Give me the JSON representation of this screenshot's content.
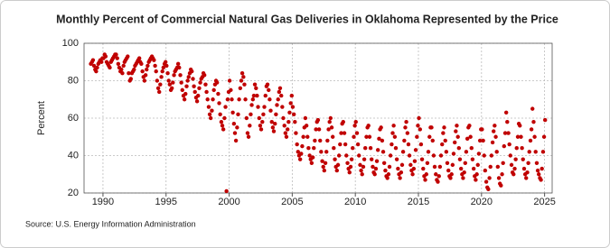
{
  "chart_data": {
    "type": "scatter",
    "title": "Monthly Percent of Commercial Natural Gas Deliveries in Oklahoma Represented by the Price",
    "y_label": "Percent",
    "source": "Source: U.S. Energy Information Administration",
    "xlim": [
      1988.5,
      2025.6
    ],
    "xticks": [
      1990,
      1995,
      2000,
      2005,
      2010,
      2015,
      2020,
      2025
    ],
    "ylim": [
      20,
      100
    ],
    "yticks": [
      20,
      40,
      60,
      80,
      100
    ],
    "grid": true,
    "series": [
      {
        "color": "#c00000",
        "x": [
          1989.04,
          1989.13,
          1989.21,
          1989.29,
          1989.38,
          1989.46,
          1989.54,
          1989.63,
          1989.71,
          1989.79,
          1989.88,
          1989.96,
          1990.04,
          1990.13,
          1990.21,
          1990.29,
          1990.38,
          1990.46,
          1990.54,
          1990.63,
          1990.71,
          1990.79,
          1990.88,
          1990.96,
          1991.04,
          1991.13,
          1991.21,
          1991.29,
          1991.38,
          1991.46,
          1991.54,
          1991.63,
          1991.71,
          1991.79,
          1991.88,
          1991.96,
          1992.04,
          1992.13,
          1992.21,
          1992.29,
          1992.38,
          1992.46,
          1992.54,
          1992.63,
          1992.71,
          1992.79,
          1992.88,
          1992.96,
          1993.04,
          1993.13,
          1993.21,
          1993.29,
          1993.38,
          1993.46,
          1993.54,
          1993.63,
          1993.71,
          1993.79,
          1993.88,
          1993.96,
          1994.04,
          1994.13,
          1994.21,
          1994.29,
          1994.38,
          1994.46,
          1994.54,
          1994.63,
          1994.71,
          1994.79,
          1994.88,
          1994.96,
          1995.04,
          1995.13,
          1995.21,
          1995.29,
          1995.38,
          1995.46,
          1995.54,
          1995.63,
          1995.71,
          1995.79,
          1995.88,
          1995.96,
          1996.04,
          1996.13,
          1996.21,
          1996.29,
          1996.38,
          1996.46,
          1996.54,
          1996.63,
          1996.71,
          1996.79,
          1996.88,
          1996.96,
          1997.04,
          1997.13,
          1997.21,
          1997.29,
          1997.38,
          1997.46,
          1997.54,
          1997.63,
          1997.71,
          1997.79,
          1997.88,
          1997.96,
          1998.04,
          1998.13,
          1998.21,
          1998.29,
          1998.38,
          1998.46,
          1998.54,
          1998.63,
          1998.71,
          1998.79,
          1998.88,
          1998.96,
          1999.04,
          1999.13,
          1999.21,
          1999.29,
          1999.38,
          1999.46,
          1999.54,
          1999.63,
          1999.71,
          1999.79,
          1999.88,
          1999.96,
          2000.04,
          2000.13,
          2000.21,
          2000.29,
          2000.38,
          2000.46,
          2000.54,
          2000.63,
          2000.71,
          2000.79,
          2000.88,
          2000.96,
          2001.04,
          2001.13,
          2001.21,
          2001.29,
          2001.38,
          2001.46,
          2001.54,
          2001.63,
          2001.71,
          2001.79,
          2001.88,
          2001.96,
          2002.04,
          2002.13,
          2002.21,
          2002.29,
          2002.38,
          2002.46,
          2002.54,
          2002.63,
          2002.71,
          2002.79,
          2002.88,
          2002.96,
          2003.04,
          2003.13,
          2003.21,
          2003.29,
          2003.38,
          2003.46,
          2003.54,
          2003.63,
          2003.71,
          2003.79,
          2003.88,
          2003.96,
          2004.04,
          2004.13,
          2004.21,
          2004.29,
          2004.38,
          2004.46,
          2004.54,
          2004.63,
          2004.71,
          2004.79,
          2004.88,
          2004.96,
          2005.04,
          2005.13,
          2005.21,
          2005.29,
          2005.38,
          2005.46,
          2005.54,
          2005.63,
          2005.71,
          2005.79,
          2005.88,
          2005.96,
          2006.04,
          2006.13,
          2006.21,
          2006.29,
          2006.38,
          2006.46,
          2006.54,
          2006.63,
          2006.71,
          2006.79,
          2006.88,
          2006.96,
          2007.04,
          2007.13,
          2007.21,
          2007.29,
          2007.38,
          2007.46,
          2007.54,
          2007.63,
          2007.71,
          2007.79,
          2007.88,
          2007.96,
          2008.04,
          2008.13,
          2008.21,
          2008.29,
          2008.38,
          2008.46,
          2008.54,
          2008.63,
          2008.71,
          2008.79,
          2008.88,
          2008.96,
          2009.04,
          2009.13,
          2009.21,
          2009.29,
          2009.38,
          2009.46,
          2009.54,
          2009.63,
          2009.71,
          2009.79,
          2009.88,
          2009.96,
          2010.04,
          2010.13,
          2010.21,
          2010.29,
          2010.38,
          2010.46,
          2010.54,
          2010.63,
          2010.71,
          2010.79,
          2010.88,
          2010.96,
          2011.04,
          2011.13,
          2011.21,
          2011.29,
          2011.38,
          2011.46,
          2011.54,
          2011.63,
          2011.71,
          2011.79,
          2011.88,
          2011.96,
          2012.04,
          2012.13,
          2012.21,
          2012.29,
          2012.38,
          2012.46,
          2012.54,
          2012.63,
          2012.71,
          2012.79,
          2012.88,
          2012.96,
          2013.04,
          2013.13,
          2013.21,
          2013.29,
          2013.38,
          2013.46,
          2013.54,
          2013.63,
          2013.71,
          2013.79,
          2013.88,
          2013.96,
          2014.04,
          2014.13,
          2014.21,
          2014.29,
          2014.38,
          2014.46,
          2014.54,
          2014.63,
          2014.71,
          2014.79,
          2014.88,
          2014.96,
          2015.04,
          2015.13,
          2015.21,
          2015.29,
          2015.38,
          2015.46,
          2015.54,
          2015.63,
          2015.71,
          2015.79,
          2015.88,
          2015.96,
          2016.04,
          2016.13,
          2016.21,
          2016.29,
          2016.38,
          2016.46,
          2016.54,
          2016.63,
          2016.71,
          2016.79,
          2016.88,
          2016.96,
          2017.04,
          2017.13,
          2017.21,
          2017.29,
          2017.38,
          2017.46,
          2017.54,
          2017.63,
          2017.71,
          2017.79,
          2017.88,
          2017.96,
          2018.04,
          2018.13,
          2018.21,
          2018.29,
          2018.38,
          2018.46,
          2018.54,
          2018.63,
          2018.71,
          2018.79,
          2018.88,
          2018.96,
          2019.04,
          2019.13,
          2019.21,
          2019.29,
          2019.38,
          2019.46,
          2019.54,
          2019.63,
          2019.71,
          2019.79,
          2019.88,
          2019.96,
          2020.04,
          2020.13,
          2020.21,
          2020.29,
          2020.38,
          2020.46,
          2020.54,
          2020.63,
          2020.71,
          2020.79,
          2020.88,
          2020.96,
          2021.04,
          2021.13,
          2021.21,
          2021.29,
          2021.38,
          2021.46,
          2021.54,
          2021.63,
          2021.71,
          2021.79,
          2021.88,
          2021.96,
          2022.04,
          2022.13,
          2022.21,
          2022.29,
          2022.38,
          2022.46,
          2022.54,
          2022.63,
          2022.71,
          2022.79,
          2022.88,
          2022.96,
          2023.04,
          2023.13,
          2023.21,
          2023.29,
          2023.38,
          2023.46,
          2023.54,
          2023.63,
          2023.71,
          2023.79,
          2023.88,
          2023.96,
          2024.04,
          2024.13,
          2024.21,
          2024.29,
          2024.38,
          2024.46,
          2024.54,
          2024.63,
          2024.71,
          2024.79,
          2024.88,
          2024.96,
          2025.04
        ],
        "values": [
          89,
          90,
          91,
          88,
          86,
          85,
          87,
          89,
          90,
          91,
          90,
          92,
          92,
          94,
          93,
          90,
          89,
          88,
          87,
          90,
          91,
          92,
          93,
          94,
          94,
          92,
          89,
          87,
          85,
          86,
          84,
          88,
          90,
          91,
          92,
          93,
          84,
          80,
          81,
          84,
          85,
          86,
          88,
          89,
          90,
          91,
          92,
          90,
          89,
          85,
          82,
          80,
          83,
          86,
          88,
          90,
          91,
          92,
          93,
          92,
          91,
          88,
          85,
          80,
          76,
          74,
          78,
          82,
          85,
          87,
          89,
          90,
          88,
          84,
          80,
          78,
          75,
          76,
          79,
          83,
          85,
          86,
          87,
          89,
          87,
          83,
          79,
          75,
          72,
          70,
          73,
          77,
          80,
          82,
          84,
          86,
          85,
          81,
          77,
          74,
          71,
          69,
          72,
          76,
          79,
          81,
          82,
          84,
          83,
          78,
          74,
          70,
          66,
          62,
          60,
          64,
          70,
          75,
          78,
          80,
          79,
          73,
          68,
          62,
          58,
          56,
          54,
          60,
          66,
          21,
          70,
          74,
          80,
          75,
          70,
          63,
          57,
          52,
          48,
          55,
          62,
          70,
          76,
          80,
          84,
          82,
          78,
          70,
          60,
          52,
          50,
          56,
          62,
          67,
          70,
          72,
          78,
          76,
          72,
          66,
          60,
          56,
          54,
          58,
          62,
          66,
          72,
          77,
          78,
          75,
          70,
          64,
          58,
          55,
          53,
          57,
          62,
          67,
          70,
          74,
          76,
          72,
          66,
          60,
          56,
          52,
          50,
          54,
          58,
          63,
          68,
          72,
          66,
          62,
          58,
          52,
          46,
          42,
          40,
          38,
          41,
          45,
          50,
          55,
          60,
          56,
          50,
          44,
          40,
          38,
          36,
          39,
          44,
          48,
          54,
          58,
          59,
          54,
          48,
          42,
          37,
          34,
          32,
          36,
          42,
          48,
          54,
          58,
          60,
          55,
          50,
          44,
          38,
          34,
          32,
          35,
          40,
          46,
          52,
          57,
          58,
          52,
          46,
          40,
          36,
          33,
          31,
          34,
          38,
          44,
          50,
          56,
          58,
          52,
          46,
          40,
          35,
          32,
          30,
          34,
          38,
          44,
          50,
          55,
          56,
          50,
          44,
          38,
          34,
          31,
          30,
          33,
          37,
          43,
          49,
          54,
          55,
          48,
          42,
          36,
          32,
          29,
          28,
          30,
          34,
          40,
          46,
          52,
          56,
          50,
          44,
          38,
          33,
          30,
          28,
          31,
          35,
          42,
          48,
          55,
          58,
          52,
          46,
          40,
          35,
          32,
          30,
          33,
          37,
          43,
          50,
          56,
          60,
          54,
          46,
          38,
          33,
          29,
          27,
          30,
          36,
          42,
          50,
          55,
          55,
          48,
          40,
          34,
          30,
          27,
          26,
          29,
          34,
          40,
          46,
          52,
          55,
          48,
          42,
          36,
          32,
          29,
          28,
          30,
          35,
          41,
          47,
          53,
          56,
          50,
          44,
          38,
          33,
          30,
          28,
          31,
          36,
          42,
          49,
          55,
          56,
          50,
          44,
          38,
          33,
          29,
          27,
          30,
          35,
          41,
          48,
          54,
          54,
          48,
          40,
          32,
          26,
          23,
          22,
          28,
          34,
          40,
          47,
          53,
          56,
          50,
          42,
          34,
          28,
          25,
          24,
          30,
          36,
          45,
          52,
          63,
          58,
          52,
          46,
          40,
          35,
          31,
          30,
          33,
          38,
          44,
          50,
          57,
          56,
          50,
          44,
          38,
          33,
          30,
          28,
          31,
          36,
          42,
          48,
          54,
          65,
          58,
          50,
          42,
          36,
          32,
          30,
          28,
          27,
          33,
          42,
          50,
          59
        ]
      }
    ]
  }
}
